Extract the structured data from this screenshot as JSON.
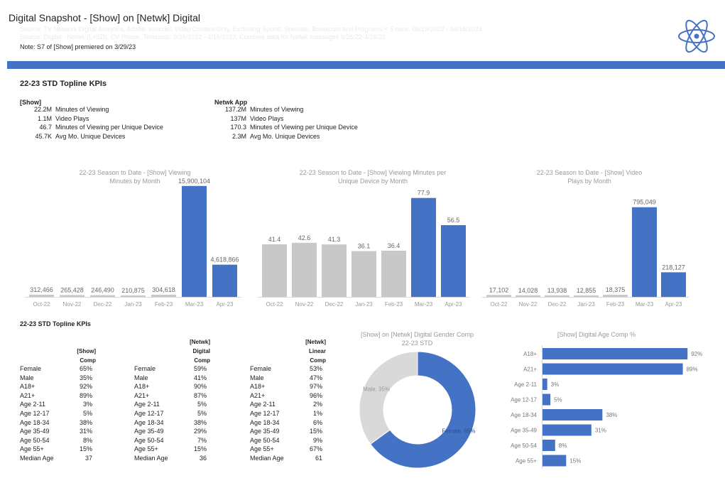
{
  "header": {
    "title": "Digital Snapshot - [Show] on [Netwk] Digital",
    "source_line_1": "Source: TV Network Digital Analytics, Adobe. Includes Video Content Only. Excluding Sports, Specials, Breakouts and Programs < 5 mins. 09/19/2022 - 04/16/2023",
    "source_line_2": "Source: Digital - Netwk (L+SD), CV Phone, Telecasts: 9/26/2022 - 4/16/2023, Combine data for Netwk messages 9/26/22-4/16/23",
    "note": "Note: S7 of [Show] premiered on 3/29/23"
  },
  "colors": {
    "accent": "#4472c4",
    "gray_bar": "#c8c8c8",
    "donut_light": "#d9d9d9"
  },
  "section_title": "22-23 STD Topline KPIs",
  "kpis": {
    "show": {
      "heading": "[Show]",
      "rows": [
        {
          "value": "22.2M",
          "label": "Minutes of Viewing"
        },
        {
          "value": "1.1M",
          "label": "Video Plays"
        },
        {
          "value": "46.7",
          "label": "Minutes of Viewing per Unique Device"
        },
        {
          "value": "45.7K",
          "label": "Avg Mo. Unique Devices"
        }
      ]
    },
    "app": {
      "heading": "Netwk App",
      "rows": [
        {
          "value": "137.2M",
          "label": "Minutes of Viewing"
        },
        {
          "value": "137M",
          "label": "Video Plays"
        },
        {
          "value": "170.3",
          "label": "Minutes of Viewing per Unique Device"
        },
        {
          "value": "2.3M",
          "label": "Avg Mo. Unique Devices"
        }
      ]
    }
  },
  "chart_data": [
    {
      "type": "bar",
      "title_1": "22-23 Season to Date - [Show] Viewing",
      "title_2": "Minutes by Month",
      "categories": [
        "Oct-22",
        "Nov-22",
        "Dec-22",
        "Jan-23",
        "Feb-23",
        "Mar-23",
        "Apr-23"
      ],
      "values": [
        312466,
        265428,
        246490,
        210875,
        304618,
        15900104,
        4618866
      ],
      "labels": [
        "312,466",
        "265,428",
        "246,490",
        "210,875",
        "304,618",
        "15,900,104",
        "4,618,866"
      ],
      "highlight": [
        false,
        false,
        false,
        false,
        false,
        true,
        true
      ],
      "ylim": [
        0,
        17000000
      ]
    },
    {
      "type": "bar",
      "title_1": "22-23 Season to Date - [Show] Viewing Minutes per",
      "title_2": "Unique Device by Month",
      "categories": [
        "Oct-22",
        "Nov-22",
        "Dec-22",
        "Jan-23",
        "Feb-23",
        "Mar-23",
        "Apr-23"
      ],
      "values": [
        41.4,
        42.6,
        41.3,
        36.1,
        36.4,
        77.9,
        56.5
      ],
      "labels": [
        "41.4",
        "42.6",
        "41.3",
        "36.1",
        "36.4",
        "77.9",
        "56.5"
      ],
      "highlight": [
        false,
        false,
        false,
        false,
        false,
        true,
        true
      ],
      "ylim": [
        0,
        85
      ]
    },
    {
      "type": "bar",
      "title_1": "22-23 Season to Date - [Show] Video",
      "title_2": "Plays by Month",
      "categories": [
        "Oct-22",
        "Nov-22",
        "Dec-22",
        "Jan-23",
        "Feb-23",
        "Mar-23",
        "Apr-23"
      ],
      "values": [
        17102,
        14028,
        13938,
        12855,
        18375,
        795049,
        218127
      ],
      "labels": [
        "17,102",
        "14,028",
        "13,938",
        "12,855",
        "18,375",
        "795,049",
        "218,127"
      ],
      "highlight": [
        false,
        false,
        false,
        false,
        false,
        true,
        true
      ],
      "ylim": [
        0,
        850000
      ]
    },
    {
      "type": "pie",
      "title_1": "[Show] on [Netwk] Digital Gender Comp",
      "title_2": "22-23 STD",
      "categories": [
        "Female",
        "Male"
      ],
      "values": [
        65,
        35
      ],
      "labels": [
        "Female, 65%",
        "Male, 35%"
      ]
    },
    {
      "type": "bar",
      "orientation": "horizontal",
      "title_1": "[Show] Digital Age Comp %",
      "categories": [
        "A18+",
        "A21+",
        "Age 2-11",
        "Age 12-17",
        "Age 18-34",
        "Age 35-49",
        "Age 50-54",
        "Age 55+"
      ],
      "values": [
        92,
        89,
        3,
        5,
        38,
        31,
        8,
        15
      ],
      "labels": [
        "92%",
        "89%",
        "3%",
        "5%",
        "38%",
        "31%",
        "8%",
        "15%"
      ],
      "xlim": [
        0,
        100
      ]
    }
  ],
  "comp_table": {
    "title": "22-23 STD Topline KPIs",
    "columns": [
      {
        "header": [
          "[Show]",
          "Comp"
        ],
        "rows": [
          {
            "label": "Female",
            "value": "65%"
          },
          {
            "label": "Male",
            "value": "35%"
          },
          {
            "label": "A18+",
            "value": "92%"
          },
          {
            "label": "A21+",
            "value": "89%"
          },
          {
            "label": "Age 2-11",
            "value": "3%"
          },
          {
            "label": "Age 12-17",
            "value": "5%"
          },
          {
            "label": "Age 18-34",
            "value": "38%"
          },
          {
            "label": "Age 35-49",
            "value": "31%"
          },
          {
            "label": "Age 50-54",
            "value": "8%"
          },
          {
            "label": "Age 55+",
            "value": "15%"
          },
          {
            "label": "Median Age",
            "value": "37"
          }
        ]
      },
      {
        "header": [
          "[Netwk]",
          "Digital",
          "Comp"
        ],
        "rows": [
          {
            "label": "Female",
            "value": "59%"
          },
          {
            "label": "Male",
            "value": "41%"
          },
          {
            "label": "A18+",
            "value": "90%"
          },
          {
            "label": "A21+",
            "value": "87%"
          },
          {
            "label": "Age 2-11",
            "value": "5%"
          },
          {
            "label": "Age 12-17",
            "value": "5%"
          },
          {
            "label": "Age 18-34",
            "value": "38%"
          },
          {
            "label": "Age 35-49",
            "value": "29%"
          },
          {
            "label": "Age 50-54",
            "value": "7%"
          },
          {
            "label": "Age 55+",
            "value": "15%"
          },
          {
            "label": "Median Age",
            "value": "36"
          }
        ]
      },
      {
        "header": [
          "[Netwk]",
          "Linear",
          "Comp"
        ],
        "rows": [
          {
            "label": "Female",
            "value": "53%"
          },
          {
            "label": "Male",
            "value": "47%"
          },
          {
            "label": "A18+",
            "value": "97%"
          },
          {
            "label": "A21+",
            "value": "96%"
          },
          {
            "label": "Age 2-11",
            "value": "2%"
          },
          {
            "label": "Age 12-17",
            "value": "1%"
          },
          {
            "label": "Age 18-34",
            "value": "6%"
          },
          {
            "label": "Age 35-49",
            "value": "15%"
          },
          {
            "label": "Age 50-54",
            "value": "9%"
          },
          {
            "label": "Age 55+",
            "value": "67%"
          },
          {
            "label": "Median Age",
            "value": "61"
          }
        ]
      }
    ]
  }
}
